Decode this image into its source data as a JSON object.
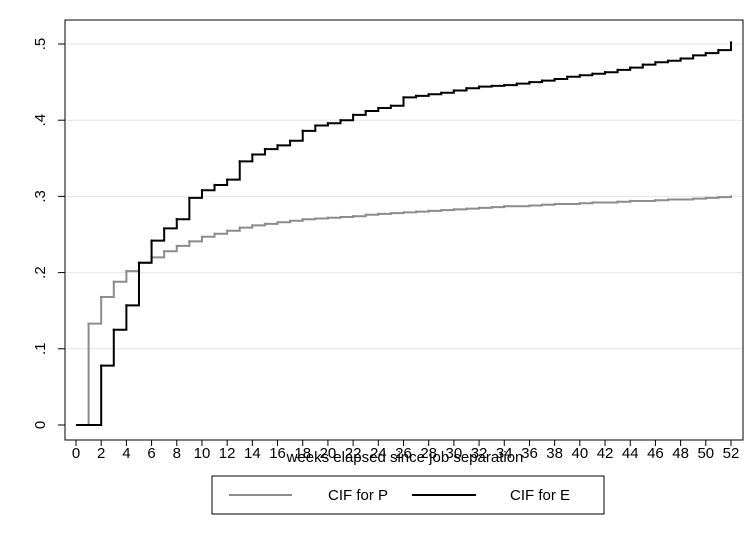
{
  "chart_data": {
    "type": "line",
    "step": true,
    "title": "",
    "xlabel": "weeks elapsed since job separation",
    "ylabel": "",
    "xlim": [
      0,
      52
    ],
    "ylim": [
      0,
      0.5
    ],
    "x_ticks": [
      0,
      2,
      4,
      6,
      8,
      10,
      12,
      14,
      16,
      18,
      20,
      22,
      24,
      26,
      28,
      30,
      32,
      34,
      36,
      38,
      40,
      42,
      44,
      46,
      48,
      50,
      52
    ],
    "x_tick_labels": [
      "0",
      "2",
      "4",
      "6",
      "8",
      "10",
      "12",
      "14",
      "16",
      "18",
      "20",
      "22",
      "24",
      "26",
      "28",
      "30",
      "32",
      "34",
      "36",
      "38",
      "40",
      "42",
      "44",
      "46",
      "48",
      "50",
      "52"
    ],
    "y_ticks": [
      0,
      0.1,
      0.2,
      0.3,
      0.4,
      0.5
    ],
    "y_tick_labels": [
      "0",
      ".1",
      ".2",
      ".3",
      ".4",
      ".5"
    ],
    "grid": "horizontal",
    "legend_position": "bottom",
    "series": [
      {
        "name": "CIF for P",
        "color": "#8c8c8c",
        "x": [
          0,
          1,
          2,
          3,
          4,
          5,
          6,
          7,
          8,
          9,
          10,
          11,
          12,
          13,
          14,
          15,
          16,
          17,
          18,
          19,
          20,
          21,
          22,
          23,
          24,
          25,
          26,
          27,
          28,
          29,
          30,
          31,
          32,
          33,
          34,
          35,
          36,
          37,
          38,
          39,
          40,
          41,
          42,
          43,
          44,
          45,
          46,
          47,
          48,
          49,
          50,
          51,
          52
        ],
        "y": [
          0,
          0.133,
          0.168,
          0.188,
          0.202,
          0.213,
          0.22,
          0.228,
          0.235,
          0.241,
          0.247,
          0.251,
          0.255,
          0.259,
          0.262,
          0.264,
          0.266,
          0.268,
          0.27,
          0.271,
          0.272,
          0.273,
          0.274,
          0.276,
          0.277,
          0.278,
          0.279,
          0.28,
          0.281,
          0.282,
          0.283,
          0.284,
          0.285,
          0.286,
          0.287,
          0.287,
          0.288,
          0.289,
          0.29,
          0.29,
          0.291,
          0.292,
          0.292,
          0.293,
          0.294,
          0.294,
          0.295,
          0.296,
          0.296,
          0.297,
          0.298,
          0.299,
          0.3
        ]
      },
      {
        "name": "CIF for E",
        "color": "#000000",
        "x": [
          0,
          1,
          2,
          3,
          4,
          5,
          6,
          7,
          8,
          9,
          10,
          11,
          12,
          13,
          14,
          15,
          16,
          17,
          18,
          19,
          20,
          21,
          22,
          23,
          24,
          25,
          26,
          27,
          28,
          29,
          30,
          31,
          32,
          33,
          34,
          35,
          36,
          37,
          38,
          39,
          40,
          41,
          42,
          43,
          44,
          45,
          46,
          47,
          48,
          49,
          50,
          51,
          52
        ],
        "y": [
          0,
          0,
          0.078,
          0.125,
          0.157,
          0.213,
          0.242,
          0.258,
          0.27,
          0.298,
          0.308,
          0.315,
          0.322,
          0.346,
          0.355,
          0.362,
          0.367,
          0.373,
          0.386,
          0.393,
          0.396,
          0.4,
          0.407,
          0.412,
          0.416,
          0.419,
          0.43,
          0.432,
          0.434,
          0.436,
          0.439,
          0.442,
          0.444,
          0.445,
          0.446,
          0.448,
          0.45,
          0.452,
          0.454,
          0.457,
          0.459,
          0.461,
          0.463,
          0.466,
          0.469,
          0.473,
          0.476,
          0.478,
          0.481,
          0.485,
          0.488,
          0.492,
          0.502
        ]
      }
    ]
  }
}
